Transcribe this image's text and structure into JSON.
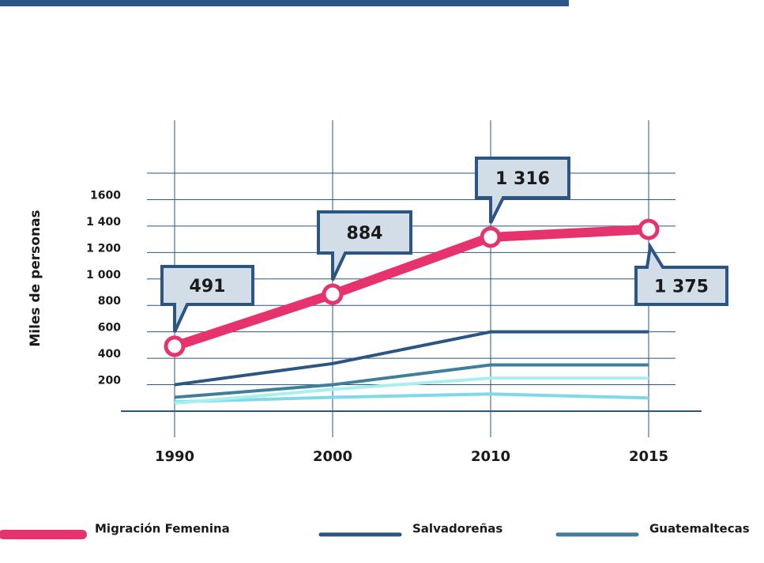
{
  "chart_data": {
    "type": "line",
    "y_label": "Miles de personas",
    "categories": [
      "1990",
      "2000",
      "2010",
      "2015"
    ],
    "ylim": [
      0,
      1800
    ],
    "yticks": [
      200,
      400,
      600,
      800,
      {
        "value": 1000,
        "label": "1 000"
      },
      {
        "value": 1200,
        "label": "1 200"
      },
      {
        "value": 1400,
        "label": "1 400"
      },
      1600
    ],
    "grid": true,
    "series": [
      {
        "name": "Migración Femenina",
        "color": "#e6336e",
        "values": [
          491,
          884,
          1316,
          1375
        ],
        "value_labels": [
          "491",
          "884",
          "1 316",
          "1 375"
        ]
      },
      {
        "name": "Salvadoreñas",
        "color": "#2b5582",
        "values": [
          200,
          360,
          600,
          600
        ]
      },
      {
        "name": "Guatemaltecas",
        "color": "#3f7f9a",
        "values": [
          105,
          200,
          350,
          350
        ]
      },
      {
        "color": "#a8f0ee",
        "values": [
          60,
          165,
          250,
          250
        ]
      },
      {
        "color": "#7fd9e8",
        "values": [
          70,
          105,
          130,
          100
        ]
      }
    ]
  }
}
